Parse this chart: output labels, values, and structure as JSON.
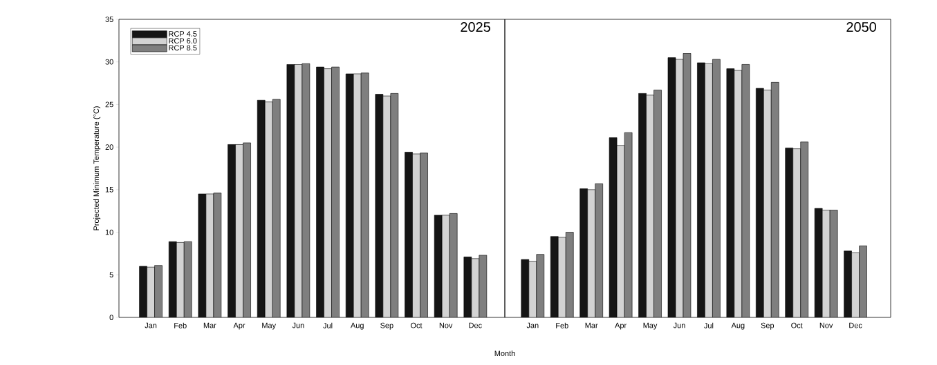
{
  "chart_data": [
    {
      "type": "bar",
      "title": "2025",
      "xlabel": "Month",
      "ylabel": "Projected Minimum Temperature (°C)",
      "categories": [
        "Jan",
        "Feb",
        "Mar",
        "Apr",
        "May",
        "Jun",
        "Jul",
        "Aug",
        "Sep",
        "Oct",
        "Nov",
        "Dec"
      ],
      "series": [
        {
          "name": "RCP 4.5",
          "color": "#151515",
          "values": [
            6.0,
            8.9,
            14.5,
            20.3,
            25.5,
            29.7,
            29.4,
            28.6,
            26.2,
            19.4,
            12.0,
            7.1
          ]
        },
        {
          "name": "RCP 6.0",
          "color": "#d3d3d3",
          "values": [
            5.9,
            8.8,
            14.5,
            20.3,
            25.3,
            29.7,
            29.2,
            28.6,
            26.0,
            19.2,
            12.0,
            6.9
          ]
        },
        {
          "name": "RCP 8.5",
          "color": "#7f7f7f",
          "values": [
            6.1,
            8.9,
            14.6,
            20.5,
            25.6,
            29.8,
            29.4,
            28.7,
            26.3,
            19.3,
            12.2,
            7.3
          ]
        }
      ],
      "ylim": [
        0,
        35
      ],
      "yticks": [
        0,
        5,
        10,
        15,
        20,
        25,
        30,
        35
      ],
      "legend": "top left"
    },
    {
      "type": "bar",
      "title": "2050",
      "categories": [
        "Jan",
        "Feb",
        "Mar",
        "Apr",
        "May",
        "Jun",
        "Jul",
        "Aug",
        "Sep",
        "Oct",
        "Nov",
        "Dec"
      ],
      "series": [
        {
          "color": "#151515",
          "values": [
            6.8,
            9.5,
            15.1,
            21.1,
            26.3,
            30.5,
            29.9,
            29.2,
            26.9,
            19.9,
            12.8,
            7.8
          ]
        },
        {
          "color": "#d3d3d3",
          "values": [
            6.6,
            9.4,
            15.0,
            20.2,
            26.1,
            30.3,
            29.8,
            29.0,
            26.7,
            19.8,
            12.6,
            7.6
          ]
        },
        {
          "color": "#7f7f7f",
          "values": [
            7.4,
            10.0,
            15.7,
            21.7,
            26.7,
            31.0,
            30.3,
            29.7,
            27.6,
            20.6,
            12.6,
            8.4
          ]
        }
      ],
      "ylim": [
        0,
        35
      ],
      "tick_labels": "x"
    }
  ]
}
